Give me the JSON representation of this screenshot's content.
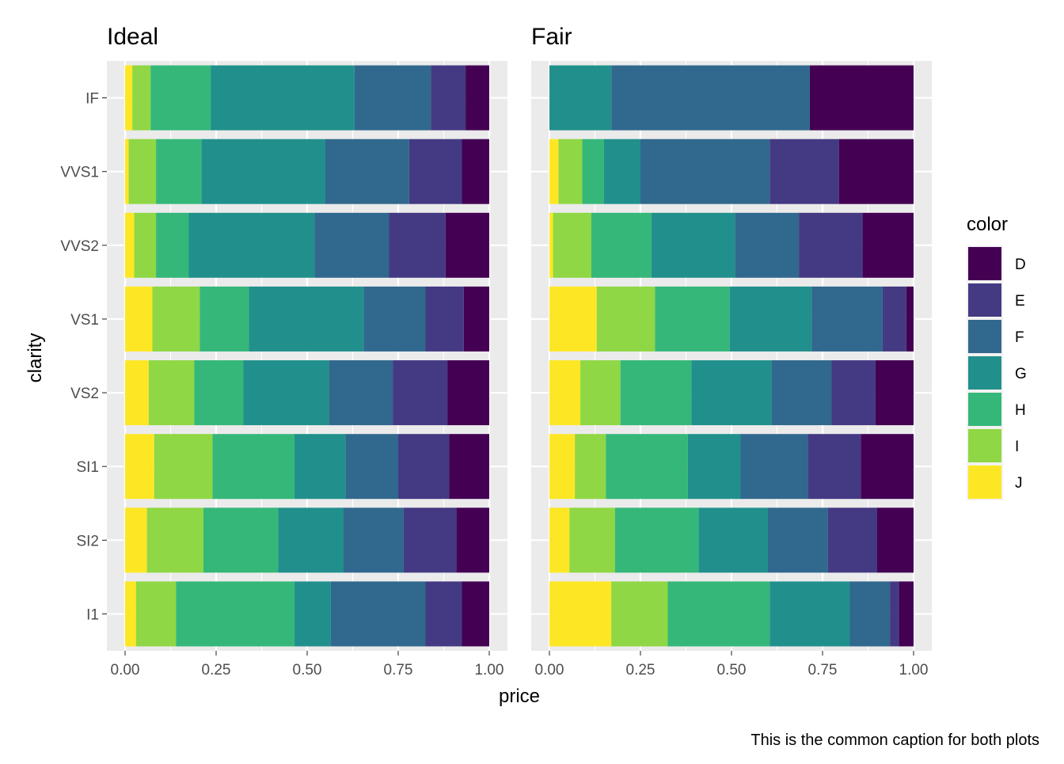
{
  "chart_data": {
    "type": "bar",
    "orientation": "horizontal",
    "stacked": "proportional",
    "xlabel": "price",
    "ylabel": "clarity",
    "xlim": [
      0,
      1
    ],
    "x_ticks": [
      "0.00",
      "0.25",
      "0.50",
      "0.75",
      "1.00"
    ],
    "caption": "This is the common caption for both plots",
    "grid": true,
    "legend": {
      "title": "color",
      "position": "right",
      "items": [
        {
          "label": "D",
          "color": "#440154"
        },
        {
          "label": "E",
          "color": "#443A83"
        },
        {
          "label": "F",
          "color": "#31688E"
        },
        {
          "label": "G",
          "color": "#21908C"
        },
        {
          "label": "H",
          "color": "#35B779"
        },
        {
          "label": "I",
          "color": "#8FD744"
        },
        {
          "label": "J",
          "color": "#FDE725"
        }
      ]
    },
    "series_order_left_to_right": [
      "J",
      "I",
      "H",
      "G",
      "F",
      "E",
      "D"
    ],
    "categories": [
      "IF",
      "VVS1",
      "VVS2",
      "VS1",
      "VS2",
      "SI1",
      "SI2",
      "I1"
    ],
    "panels": [
      {
        "title": "Ideal",
        "bars": [
          {
            "category": "IF",
            "values": [
              0.02,
              0.05,
              0.165,
              0.395,
              0.21,
              0.095,
              0.065
            ]
          },
          {
            "category": "VVS1",
            "values": [
              0.01,
              0.075,
              0.125,
              0.34,
              0.23,
              0.145,
              0.075
            ]
          },
          {
            "category": "VVS2",
            "values": [
              0.025,
              0.06,
              0.09,
              0.345,
              0.205,
              0.155,
              0.12
            ]
          },
          {
            "category": "VS1",
            "values": [
              0.075,
              0.13,
              0.135,
              0.315,
              0.17,
              0.105,
              0.07
            ]
          },
          {
            "category": "VS2",
            "values": [
              0.065,
              0.125,
              0.135,
              0.235,
              0.175,
              0.15,
              0.115
            ]
          },
          {
            "category": "SI1",
            "values": [
              0.08,
              0.16,
              0.225,
              0.14,
              0.145,
              0.14,
              0.11
            ]
          },
          {
            "category": "SI2",
            "values": [
              0.06,
              0.155,
              0.205,
              0.18,
              0.165,
              0.145,
              0.09
            ]
          },
          {
            "category": "I1",
            "values": [
              0.03,
              0.11,
              0.325,
              0.1,
              0.26,
              0.1,
              0.075
            ]
          }
        ]
      },
      {
        "title": "Fair",
        "bars": [
          {
            "category": "IF",
            "values": [
              0,
              0,
              0,
              0.17,
              0.545,
              0,
              0.285
            ]
          },
          {
            "category": "VVS1",
            "values": [
              0.025,
              0.065,
              0.06,
              0.1,
              0.355,
              0.19,
              0.205
            ]
          },
          {
            "category": "VVS2",
            "values": [
              0.01,
              0.105,
              0.165,
              0.23,
              0.175,
              0.175,
              0.14
            ]
          },
          {
            "category": "VS1",
            "values": [
              0.13,
              0.16,
              0.205,
              0.225,
              0.195,
              0.065,
              0.02
            ]
          },
          {
            "category": "VS2",
            "values": [
              0.085,
              0.11,
              0.195,
              0.22,
              0.165,
              0.12,
              0.105
            ]
          },
          {
            "category": "SI1",
            "values": [
              0.07,
              0.085,
              0.225,
              0.145,
              0.185,
              0.145,
              0.145
            ]
          },
          {
            "category": "SI2",
            "values": [
              0.055,
              0.125,
              0.23,
              0.19,
              0.165,
              0.135,
              0.1
            ]
          },
          {
            "category": "I1",
            "values": [
              0.17,
              0.155,
              0.28,
              0.22,
              0.11,
              0.025,
              0.04
            ]
          }
        ]
      }
    ]
  }
}
